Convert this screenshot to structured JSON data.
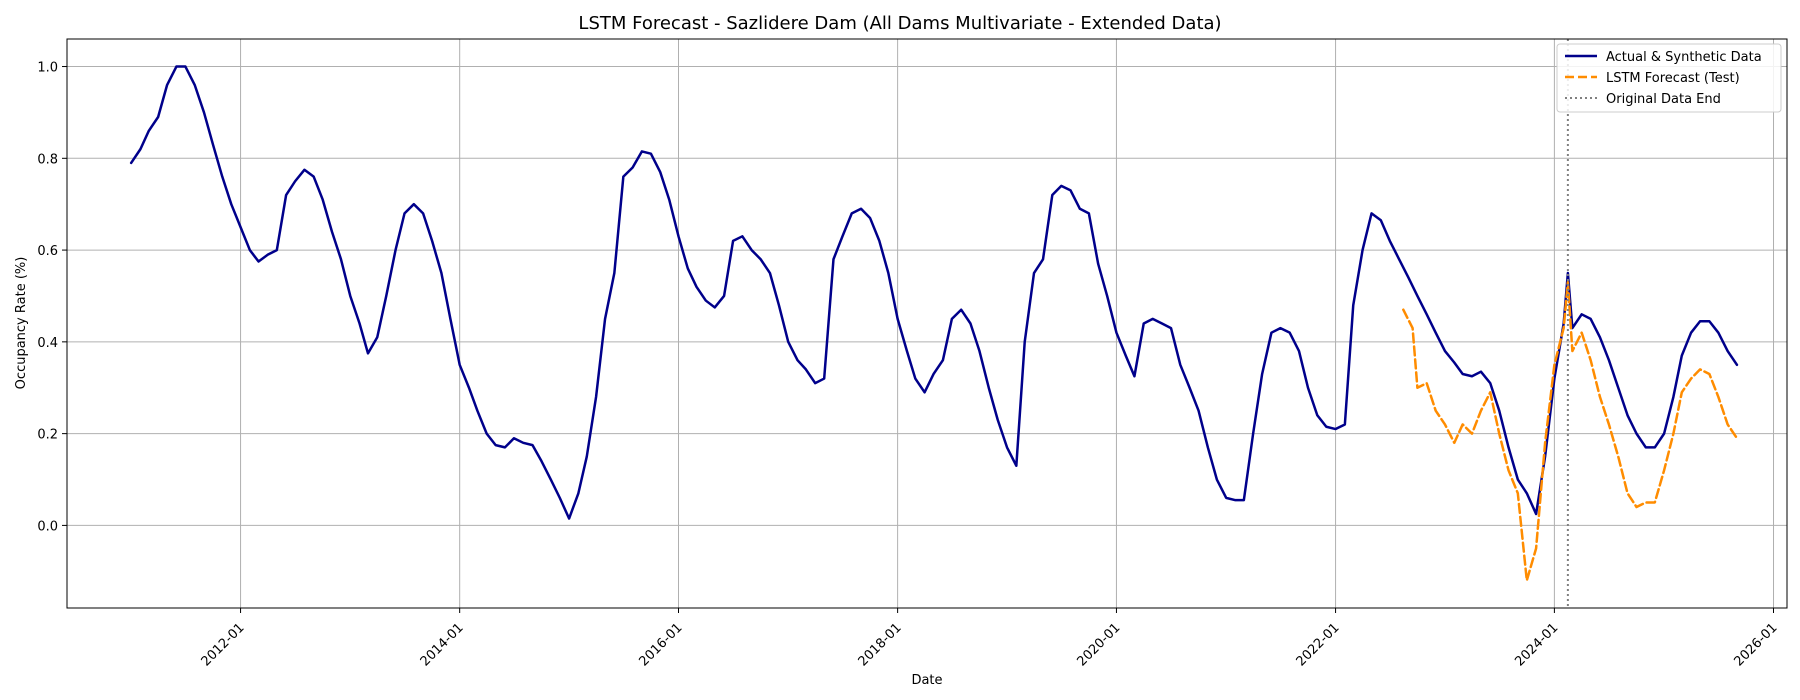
{
  "chart_data": {
    "type": "line",
    "title": "LSTM Forecast - Sazlidere Dam (All Dams Multivariate - Extended Data)",
    "xlabel": "Date",
    "ylabel": "Occupancy Rate (%)",
    "xlim": [
      "2010-06-01",
      "2026-02-15"
    ],
    "ylim": [
      -0.18,
      1.06
    ],
    "x_ticks": [
      "2012-01",
      "2014-01",
      "2016-01",
      "2018-01",
      "2020-01",
      "2022-01",
      "2024-01",
      "2026-01"
    ],
    "y_ticks": [
      "0.0",
      "0.2",
      "0.4",
      "0.6",
      "0.8",
      "1.0"
    ],
    "grid": true,
    "legend_position": "top-right",
    "vline": {
      "x": "2024-02-15",
      "label": "Original Data End",
      "color": "#808080"
    },
    "series": [
      {
        "name": "Actual & Synthetic Data",
        "color": "#00008b",
        "style": "solid",
        "points": [
          [
            "2011-01-01",
            0.79
          ],
          [
            "2011-02-01",
            0.82
          ],
          [
            "2011-03-01",
            0.86
          ],
          [
            "2011-04-01",
            0.89
          ],
          [
            "2011-05-01",
            0.96
          ],
          [
            "2011-06-01",
            1.0
          ],
          [
            "2011-07-01",
            1.0
          ],
          [
            "2011-08-01",
            0.96
          ],
          [
            "2011-09-01",
            0.9
          ],
          [
            "2011-10-01",
            0.83
          ],
          [
            "2011-11-01",
            0.76
          ],
          [
            "2011-12-01",
            0.7
          ],
          [
            "2012-01-01",
            0.65
          ],
          [
            "2012-02-01",
            0.6
          ],
          [
            "2012-03-01",
            0.575
          ],
          [
            "2012-04-01",
            0.59
          ],
          [
            "2012-05-01",
            0.6
          ],
          [
            "2012-06-01",
            0.72
          ],
          [
            "2012-07-01",
            0.75
          ],
          [
            "2012-08-01",
            0.775
          ],
          [
            "2012-09-01",
            0.76
          ],
          [
            "2012-10-01",
            0.71
          ],
          [
            "2012-11-01",
            0.64
          ],
          [
            "2012-12-01",
            0.58
          ],
          [
            "2013-01-01",
            0.5
          ],
          [
            "2013-02-01",
            0.44
          ],
          [
            "2013-03-01",
            0.375
          ],
          [
            "2013-04-01",
            0.41
          ],
          [
            "2013-05-01",
            0.5
          ],
          [
            "2013-06-01",
            0.6
          ],
          [
            "2013-07-01",
            0.68
          ],
          [
            "2013-08-01",
            0.7
          ],
          [
            "2013-09-01",
            0.68
          ],
          [
            "2013-10-01",
            0.62
          ],
          [
            "2013-11-01",
            0.55
          ],
          [
            "2013-12-01",
            0.45
          ],
          [
            "2014-01-01",
            0.35
          ],
          [
            "2014-02-01",
            0.3
          ],
          [
            "2014-03-01",
            0.25
          ],
          [
            "2014-04-01",
            0.2
          ],
          [
            "2014-05-01",
            0.175
          ],
          [
            "2014-06-01",
            0.17
          ],
          [
            "2014-07-01",
            0.19
          ],
          [
            "2014-08-01",
            0.18
          ],
          [
            "2014-09-01",
            0.175
          ],
          [
            "2014-10-01",
            0.14
          ],
          [
            "2014-11-01",
            0.1
          ],
          [
            "2014-12-01",
            0.06
          ],
          [
            "2015-01-01",
            0.015
          ],
          [
            "2015-02-01",
            0.07
          ],
          [
            "2015-03-01",
            0.15
          ],
          [
            "2015-04-01",
            0.28
          ],
          [
            "2015-05-01",
            0.45
          ],
          [
            "2015-06-01",
            0.55
          ],
          [
            "2015-07-01",
            0.76
          ],
          [
            "2015-08-01",
            0.78
          ],
          [
            "2015-09-01",
            0.815
          ],
          [
            "2015-10-01",
            0.81
          ],
          [
            "2015-11-01",
            0.77
          ],
          [
            "2015-12-01",
            0.71
          ],
          [
            "2016-01-01",
            0.63
          ],
          [
            "2016-02-01",
            0.56
          ],
          [
            "2016-03-01",
            0.52
          ],
          [
            "2016-04-01",
            0.49
          ],
          [
            "2016-05-01",
            0.475
          ],
          [
            "2016-06-01",
            0.5
          ],
          [
            "2016-07-01",
            0.62
          ],
          [
            "2016-08-01",
            0.63
          ],
          [
            "2016-09-01",
            0.6
          ],
          [
            "2016-10-01",
            0.58
          ],
          [
            "2016-11-01",
            0.55
          ],
          [
            "2016-12-01",
            0.48
          ],
          [
            "2017-01-01",
            0.4
          ],
          [
            "2017-02-01",
            0.36
          ],
          [
            "2017-03-01",
            0.34
          ],
          [
            "2017-04-01",
            0.31
          ],
          [
            "2017-05-01",
            0.32
          ],
          [
            "2017-06-01",
            0.58
          ],
          [
            "2017-07-01",
            0.63
          ],
          [
            "2017-08-01",
            0.68
          ],
          [
            "2017-09-01",
            0.69
          ],
          [
            "2017-10-01",
            0.67
          ],
          [
            "2017-11-01",
            0.62
          ],
          [
            "2017-12-01",
            0.55
          ],
          [
            "2018-01-01",
            0.45
          ],
          [
            "2018-02-01",
            0.38
          ],
          [
            "2018-03-01",
            0.32
          ],
          [
            "2018-04-01",
            0.29
          ],
          [
            "2018-05-01",
            0.33
          ],
          [
            "2018-06-01",
            0.36
          ],
          [
            "2018-07-01",
            0.45
          ],
          [
            "2018-08-01",
            0.47
          ],
          [
            "2018-09-01",
            0.44
          ],
          [
            "2018-10-01",
            0.38
          ],
          [
            "2018-11-01",
            0.3
          ],
          [
            "2018-12-01",
            0.23
          ],
          [
            "2019-01-01",
            0.17
          ],
          [
            "2019-02-01",
            0.13
          ],
          [
            "2019-03-01",
            0.4
          ],
          [
            "2019-04-01",
            0.55
          ],
          [
            "2019-05-01",
            0.58
          ],
          [
            "2019-06-01",
            0.72
          ],
          [
            "2019-07-01",
            0.74
          ],
          [
            "2019-08-01",
            0.73
          ],
          [
            "2019-09-01",
            0.69
          ],
          [
            "2019-10-01",
            0.68
          ],
          [
            "2019-11-01",
            0.57
          ],
          [
            "2019-12-01",
            0.5
          ],
          [
            "2020-01-01",
            0.42
          ],
          [
            "2020-02-01",
            0.37
          ],
          [
            "2020-03-01",
            0.325
          ],
          [
            "2020-04-01",
            0.44
          ],
          [
            "2020-05-01",
            0.45
          ],
          [
            "2020-06-01",
            0.44
          ],
          [
            "2020-07-01",
            0.43
          ],
          [
            "2020-08-01",
            0.35
          ],
          [
            "2020-09-01",
            0.3
          ],
          [
            "2020-10-01",
            0.25
          ],
          [
            "2020-11-01",
            0.17
          ],
          [
            "2020-12-01",
            0.1
          ],
          [
            "2021-01-01",
            0.06
          ],
          [
            "2021-02-01",
            0.055
          ],
          [
            "2021-03-01",
            0.055
          ],
          [
            "2021-04-01",
            0.2
          ],
          [
            "2021-05-01",
            0.33
          ],
          [
            "2021-06-01",
            0.42
          ],
          [
            "2021-07-01",
            0.43
          ],
          [
            "2021-08-01",
            0.42
          ],
          [
            "2021-09-01",
            0.38
          ],
          [
            "2021-10-01",
            0.3
          ],
          [
            "2021-11-01",
            0.24
          ],
          [
            "2021-12-01",
            0.215
          ],
          [
            "2022-01-01",
            0.21
          ],
          [
            "2022-02-01",
            0.22
          ],
          [
            "2022-03-01",
            0.48
          ],
          [
            "2022-04-01",
            0.6
          ],
          [
            "2022-05-01",
            0.68
          ],
          [
            "2022-06-01",
            0.665
          ],
          [
            "2022-07-01",
            0.62
          ],
          [
            "2022-08-01",
            0.58
          ],
          [
            "2022-09-01",
            0.54
          ],
          [
            "2022-10-01",
            0.5
          ],
          [
            "2022-11-01",
            0.46
          ],
          [
            "2022-12-01",
            0.42
          ],
          [
            "2023-01-01",
            0.38
          ],
          [
            "2023-02-01",
            0.355
          ],
          [
            "2023-03-01",
            0.33
          ],
          [
            "2023-04-01",
            0.325
          ],
          [
            "2023-05-01",
            0.335
          ],
          [
            "2023-06-01",
            0.31
          ],
          [
            "2023-07-01",
            0.25
          ],
          [
            "2023-08-01",
            0.17
          ],
          [
            "2023-09-01",
            0.1
          ],
          [
            "2023-10-01",
            0.07
          ],
          [
            "2023-11-01",
            0.025
          ],
          [
            "2023-12-01",
            0.15
          ],
          [
            "2024-01-01",
            0.32
          ],
          [
            "2024-02-01",
            0.44
          ],
          [
            "2024-02-15",
            0.55
          ],
          [
            "2024-03-01",
            0.43
          ],
          [
            "2024-04-01",
            0.46
          ],
          [
            "2024-05-01",
            0.45
          ],
          [
            "2024-06-01",
            0.41
          ],
          [
            "2024-07-01",
            0.36
          ],
          [
            "2024-08-01",
            0.3
          ],
          [
            "2024-09-01",
            0.24
          ],
          [
            "2024-10-01",
            0.2
          ],
          [
            "2024-11-01",
            0.17
          ],
          [
            "2024-12-01",
            0.17
          ],
          [
            "2025-01-01",
            0.2
          ],
          [
            "2025-02-01",
            0.28
          ],
          [
            "2025-03-01",
            0.37
          ],
          [
            "2025-04-01",
            0.42
          ],
          [
            "2025-05-01",
            0.445
          ],
          [
            "2025-06-01",
            0.445
          ],
          [
            "2025-07-01",
            0.42
          ],
          [
            "2025-08-01",
            0.38
          ],
          [
            "2025-09-01",
            0.35
          ]
        ]
      },
      {
        "name": "LSTM Forecast (Test)",
        "color": "#ff8c00",
        "style": "dashed",
        "points": [
          [
            "2022-08-15",
            0.47
          ],
          [
            "2022-09-15",
            0.43
          ],
          [
            "2022-10-01",
            0.3
          ],
          [
            "2022-11-01",
            0.31
          ],
          [
            "2022-12-01",
            0.25
          ],
          [
            "2023-01-01",
            0.22
          ],
          [
            "2023-02-01",
            0.18
          ],
          [
            "2023-03-01",
            0.22
          ],
          [
            "2023-04-01",
            0.2
          ],
          [
            "2023-05-01",
            0.25
          ],
          [
            "2023-06-01",
            0.29
          ],
          [
            "2023-07-01",
            0.2
          ],
          [
            "2023-08-01",
            0.12
          ],
          [
            "2023-09-01",
            0.07
          ],
          [
            "2023-10-01",
            -0.12
          ],
          [
            "2023-11-01",
            -0.05
          ],
          [
            "2023-12-01",
            0.18
          ],
          [
            "2024-01-01",
            0.35
          ],
          [
            "2024-02-01",
            0.43
          ],
          [
            "2024-02-15",
            0.53
          ],
          [
            "2024-03-01",
            0.38
          ],
          [
            "2024-04-01",
            0.42
          ],
          [
            "2024-05-01",
            0.36
          ],
          [
            "2024-06-01",
            0.28
          ],
          [
            "2024-07-01",
            0.22
          ],
          [
            "2024-08-01",
            0.15
          ],
          [
            "2024-09-01",
            0.07
          ],
          [
            "2024-10-01",
            0.04
          ],
          [
            "2024-11-01",
            0.05
          ],
          [
            "2024-12-01",
            0.05
          ],
          [
            "2025-01-01",
            0.12
          ],
          [
            "2025-02-01",
            0.2
          ],
          [
            "2025-03-01",
            0.29
          ],
          [
            "2025-04-01",
            0.32
          ],
          [
            "2025-05-01",
            0.34
          ],
          [
            "2025-06-01",
            0.33
          ],
          [
            "2025-07-01",
            0.28
          ],
          [
            "2025-08-01",
            0.22
          ],
          [
            "2025-09-01",
            0.19
          ]
        ]
      }
    ]
  }
}
